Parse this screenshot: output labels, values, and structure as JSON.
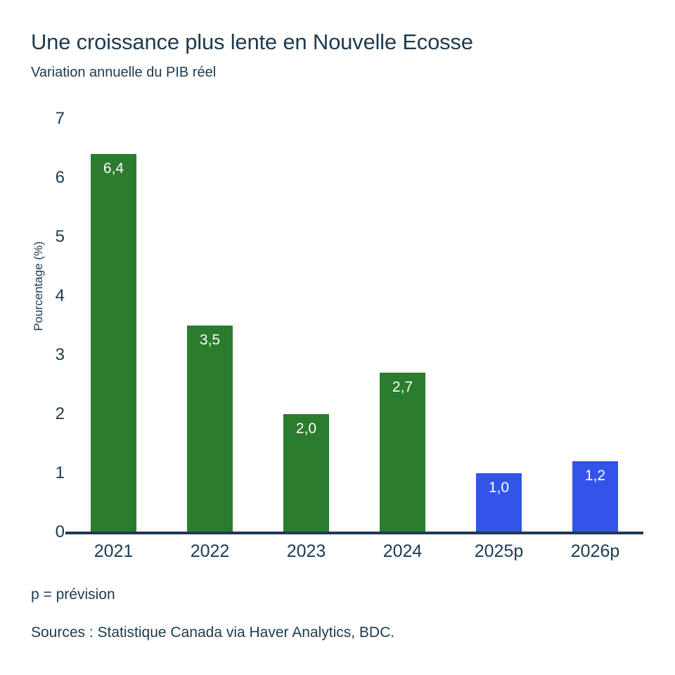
{
  "page": {
    "title": "Une croissance plus lente en Nouvelle Ecosse",
    "subtitle": "Variation annuelle du PIB réel",
    "footnote": "p = prévision",
    "sources": "Sources : Statistique Canada via Haver Analytics, BDC."
  },
  "colors": {
    "text": "#1d3a4f",
    "axis": "#1d3a4f",
    "green": "#2b7c2e",
    "blue": "#3254e8",
    "bar_label": "#ffffff",
    "background": "#ffffff"
  },
  "chart_data": {
    "type": "bar",
    "title": "Une croissance plus lente en Nouvelle Ecosse",
    "subtitle": "Variation annuelle du PIB réel",
    "xlabel": "",
    "ylabel": "Pourcentage (%)",
    "ylim": [
      0,
      7
    ],
    "yticks": [
      0,
      1,
      2,
      3,
      4,
      5,
      6,
      7
    ],
    "grid": false,
    "legend": null,
    "categories": [
      "2021",
      "2022",
      "2023",
      "2024",
      "2025p",
      "2026p"
    ],
    "values": [
      6.4,
      3.5,
      2.0,
      2.7,
      1.0,
      1.2
    ],
    "value_labels": [
      "6,4",
      "3,5",
      "2,0",
      "2,7",
      "1,0",
      "1,2"
    ],
    "bar_colors": [
      "green",
      "green",
      "green",
      "green",
      "blue",
      "blue"
    ],
    "footnote": "p = prévision",
    "source": "Sources : Statistique Canada via Haver Analytics, BDC."
  }
}
